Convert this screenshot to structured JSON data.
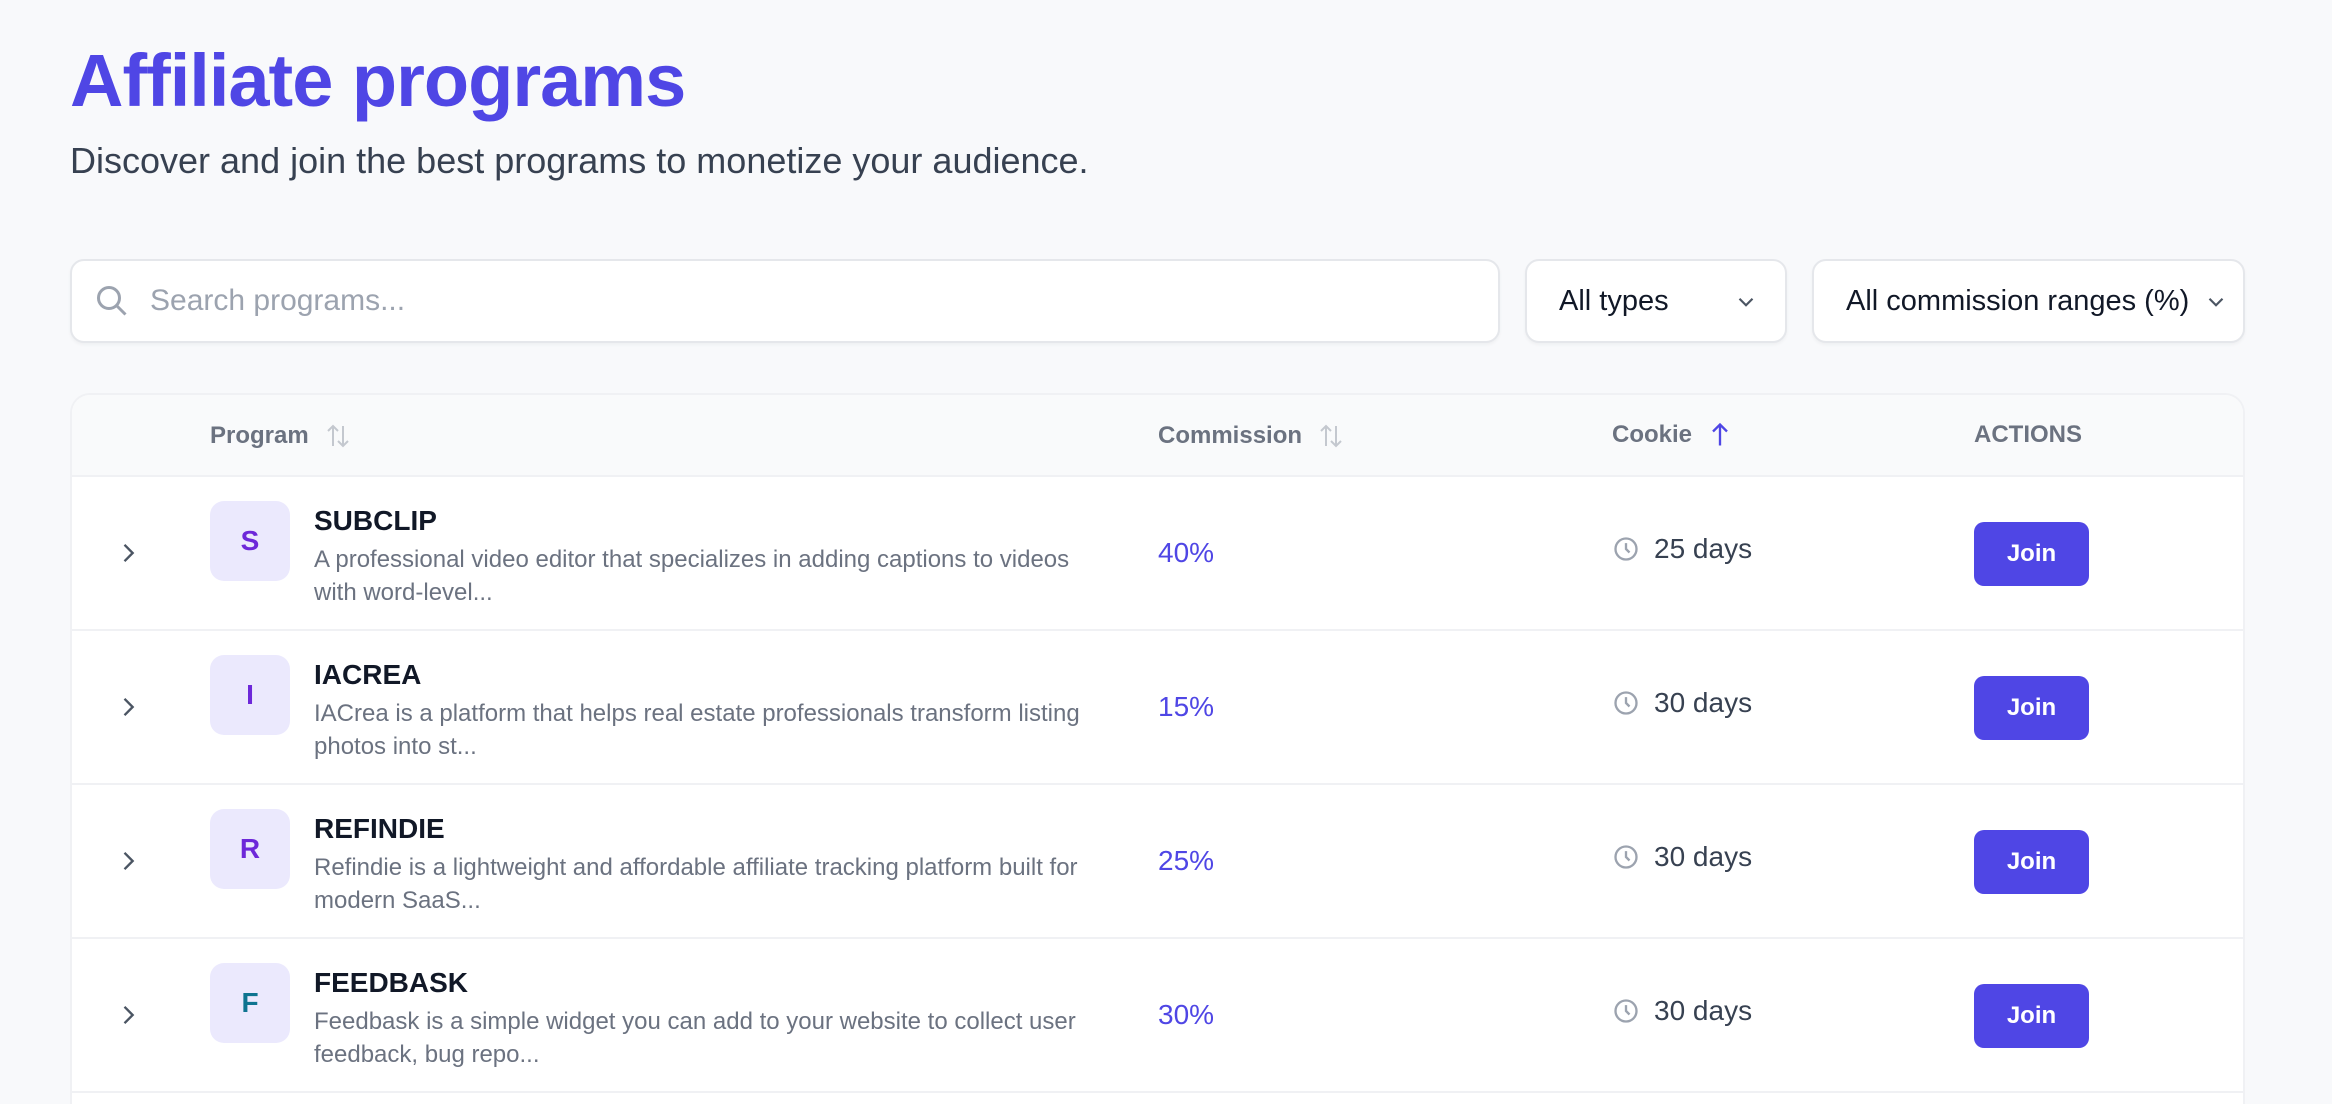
{
  "header": {
    "title": "Affiliate programs",
    "subtitle": "Discover and join the best programs to monetize your audience."
  },
  "filters": {
    "search_placeholder": "Search programs...",
    "search_value": "",
    "type_select": "All types",
    "commission_select": "All commission ranges (%)"
  },
  "table": {
    "columns": {
      "program": "Program",
      "commission": "Commission",
      "cookie": "Cookie",
      "actions": "ACTIONS"
    },
    "sort": {
      "column": "Cookie",
      "direction": "ascending"
    },
    "rows": [
      {
        "initial": "S",
        "initial_color": "#6d28d9",
        "name": "SUBCLIP",
        "description": "A professional video editor that specializes in adding captions to videos with word-level...",
        "commission": "40%",
        "cookie": "25 days",
        "action": "Join"
      },
      {
        "initial": "I",
        "initial_color": "#6d28d9",
        "name": "IACREA",
        "description": "IACrea is a platform that helps real estate professionals transform listing photos into st...",
        "commission": "15%",
        "cookie": "30 days",
        "action": "Join"
      },
      {
        "initial": "R",
        "initial_color": "#6d28d9",
        "name": "REFINDIE",
        "description": "Refindie is a lightweight and affordable affiliate tracking platform built for modern SaaS...",
        "commission": "25%",
        "cookie": "30 days",
        "action": "Join"
      },
      {
        "initial": "F",
        "initial_color": "#0e7490",
        "name": "FEEDBASK",
        "description": "Feedbask is a simple widget you can add to your website to collect user feedback, bug repo...",
        "commission": "30%",
        "cookie": "30 days",
        "action": "Join"
      }
    ]
  },
  "colors": {
    "accent": "#4f46e5",
    "background": "#f8f9fb"
  }
}
